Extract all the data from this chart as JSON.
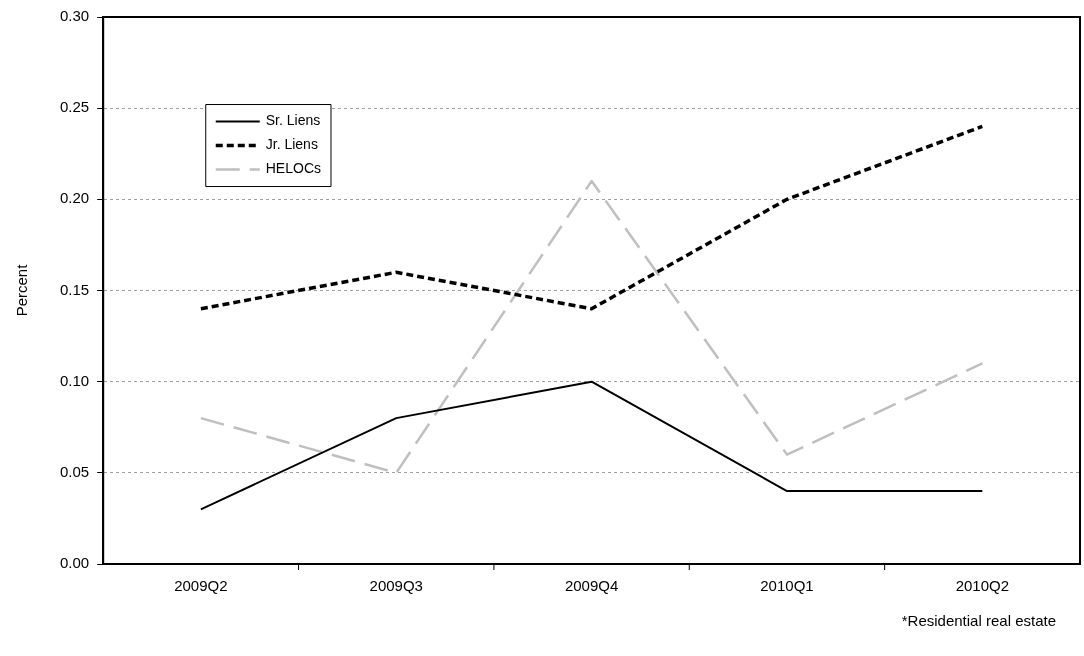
{
  "chart_data": {
    "type": "line",
    "ylabel": "Percent",
    "categories": [
      "2009Q2",
      "2009Q3",
      "2009Q4",
      "2010Q1",
      "2010Q2"
    ],
    "series": [
      {
        "name": "Sr. Liens",
        "color": "#000000",
        "line_style": "solid",
        "values": [
          0.03,
          0.08,
          0.1,
          0.04,
          0.04
        ]
      },
      {
        "name": "Jr. Liens",
        "color": "#000000",
        "line_style": "dashed",
        "values": [
          0.14,
          0.16,
          0.14,
          0.2,
          0.24
        ]
      },
      {
        "name": "HELOCs",
        "color": "#bfbfbf",
        "line_style": "longdash",
        "values": [
          0.08,
          0.05,
          0.21,
          0.06,
          0.11
        ]
      }
    ],
    "ylim": [
      0,
      0.3
    ],
    "yticks": [
      {
        "value": 0,
        "label": "0.00"
      },
      0.05,
      {
        "value": 0.1,
        "label": "0.10"
      },
      0.15,
      {
        "value": 0.2,
        "label": "0.20"
      },
      0.25,
      {
        "value": 0.3,
        "label": "0.30"
      }
    ],
    "grid": "y",
    "legend": "top left",
    "marker": "none",
    "annotations": [
      "*Residential real estate"
    ]
  }
}
